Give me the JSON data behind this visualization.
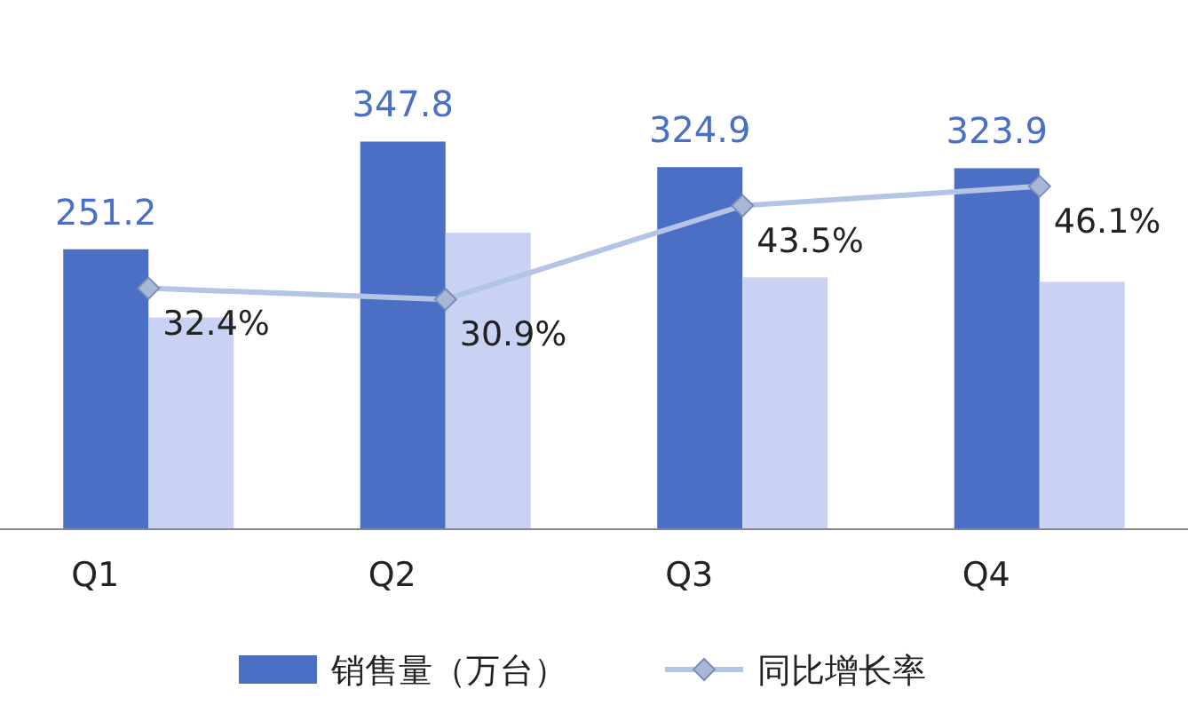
{
  "chart_data": {
    "type": "bar",
    "categories": [
      "Q1",
      "Q2",
      "Q3",
      "Q4"
    ],
    "series": [
      {
        "name": "销售量（万台）",
        "color": "#4a6fc4",
        "values": [
          251.2,
          347.8,
          324.9,
          323.9
        ],
        "value_labels": [
          "251.2",
          "347.8",
          "324.9",
          "323.9"
        ]
      },
      {
        "color": "#c9d2f2",
        "values": [
          190,
          266,
          226,
          222
        ]
      },
      {
        "name": "同比增长率",
        "type": "line",
        "axis": "y2",
        "color": "#b4c4e4",
        "values": [
          32.4,
          30.9,
          43.5,
          46.1
        ],
        "value_labels": [
          "32.4%",
          "30.9%",
          "43.5%",
          "46.1%"
        ]
      }
    ],
    "marker": "diamond",
    "tick_labels": "x",
    "legend": "bottom",
    "grid": false
  }
}
